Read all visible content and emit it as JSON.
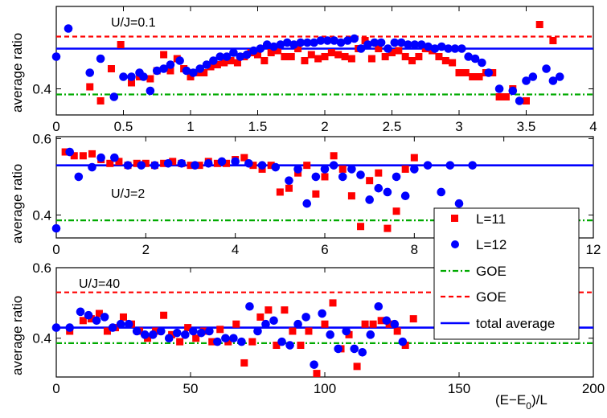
{
  "chart_data": [
    {
      "type": "scatter",
      "annotation": "U/J=0.1",
      "ylabel": "average ratio",
      "xlim": [
        0,
        4
      ],
      "ylim": [
        0.335,
        0.605
      ],
      "xticks": [
        "0",
        "0.5",
        "1",
        "1.5",
        "2",
        "2.5",
        "3",
        "3.5",
        "4"
      ],
      "xtick_values": [
        0,
        0.5,
        1,
        1.5,
        2,
        2.5,
        3,
        3.5,
        4
      ],
      "yticks": [
        "0.4"
      ],
      "ytick_values": [
        0.4
      ],
      "lines": {
        "goe_poisson": 0.386,
        "goe": 0.53,
        "total_average": 0.5
      },
      "series": [
        {
          "name": "L=11",
          "x": [
            0.25,
            0.33,
            0.41,
            0.48,
            0.56,
            0.62,
            0.7,
            0.75,
            0.8,
            0.85,
            0.9,
            0.95,
            1.0,
            1.05,
            1.1,
            1.15,
            1.2,
            1.25,
            1.3,
            1.35,
            1.4,
            1.45,
            1.5,
            1.55,
            1.6,
            1.65,
            1.7,
            1.75,
            1.8,
            1.85,
            1.9,
            1.95,
            2.0,
            2.05,
            2.1,
            2.15,
            2.2,
            2.25,
            2.3,
            2.35,
            2.4,
            2.45,
            2.5,
            2.55,
            2.6,
            2.65,
            2.7,
            2.75,
            2.8,
            2.85,
            2.9,
            2.95,
            3.0,
            3.05,
            3.1,
            3.15,
            3.2,
            3.25,
            3.3,
            3.35,
            3.4,
            3.5,
            3.6,
            3.7
          ],
          "y": [
            0.405,
            0.37,
            0.45,
            0.51,
            0.415,
            0.43,
            0.425,
            0.445,
            0.485,
            0.445,
            0.475,
            0.45,
            0.43,
            0.44,
            0.44,
            0.455,
            0.46,
            0.465,
            0.47,
            0.465,
            0.48,
            0.49,
            0.485,
            0.47,
            0.49,
            0.495,
            0.48,
            0.48,
            0.5,
            0.47,
            0.485,
            0.475,
            0.48,
            0.49,
            0.485,
            0.48,
            0.475,
            0.5,
            0.52,
            0.475,
            0.5,
            0.48,
            0.49,
            0.495,
            0.48,
            0.47,
            0.48,
            0.5,
            0.495,
            0.48,
            0.47,
            0.465,
            0.44,
            0.44,
            0.43,
            0.43,
            0.44,
            0.44,
            0.38,
            0.38,
            0.4,
            0.37,
            0.56,
            0.52
          ]
        },
        {
          "name": "L=12",
          "x": [
            0,
            0.09,
            0.25,
            0.33,
            0.43,
            0.5,
            0.56,
            0.62,
            0.65,
            0.7,
            0.75,
            0.8,
            0.85,
            0.92,
            0.97,
            1.02,
            1.07,
            1.12,
            1.17,
            1.22,
            1.27,
            1.32,
            1.37,
            1.42,
            1.47,
            1.52,
            1.57,
            1.62,
            1.67,
            1.72,
            1.77,
            1.82,
            1.87,
            1.92,
            1.97,
            2.02,
            2.07,
            2.12,
            2.17,
            2.22,
            2.27,
            2.32,
            2.37,
            2.42,
            2.47,
            2.52,
            2.57,
            2.62,
            2.67,
            2.72,
            2.77,
            2.82,
            2.87,
            2.92,
            2.97,
            3.02,
            3.07,
            3.12,
            3.17,
            3.22,
            3.3,
            3.4,
            3.45,
            3.5,
            3.55,
            3.65,
            3.7,
            3.75
          ],
          "y": [
            0.48,
            0.55,
            0.44,
            0.475,
            0.38,
            0.43,
            0.43,
            0.44,
            0.43,
            0.395,
            0.445,
            0.45,
            0.46,
            0.47,
            0.445,
            0.44,
            0.45,
            0.46,
            0.47,
            0.48,
            0.48,
            0.49,
            0.48,
            0.485,
            0.495,
            0.5,
            0.51,
            0.505,
            0.51,
            0.515,
            0.51,
            0.515,
            0.515,
            0.515,
            0.52,
            0.52,
            0.52,
            0.515,
            0.52,
            0.525,
            0.5,
            0.51,
            0.515,
            0.515,
            0.5,
            0.515,
            0.515,
            0.51,
            0.51,
            0.51,
            0.505,
            0.5,
            0.505,
            0.5,
            0.5,
            0.5,
            0.48,
            0.475,
            0.465,
            0.44,
            0.4,
            0.395,
            0.37,
            0.42,
            0.43,
            0.45,
            0.42,
            0.43
          ]
        }
      ]
    },
    {
      "type": "scatter",
      "annotation": "U/J=2",
      "ylabel": "average ratio",
      "xlim": [
        0,
        12
      ],
      "ylim": [
        0.34,
        0.605
      ],
      "xticks": [
        "0",
        "2",
        "4",
        "6",
        "8",
        "10",
        "12"
      ],
      "xtick_values": [
        0,
        2,
        4,
        6,
        8,
        10,
        12
      ],
      "yticks": [
        "0.4",
        "0.6"
      ],
      "ytick_values": [
        0.4,
        0.6
      ],
      "lines": {
        "goe_poisson": 0.386,
        "total_average": 0.53
      },
      "series": [
        {
          "name": "L=11",
          "x": [
            0.2,
            0.4,
            0.6,
            0.8,
            1.0,
            1.2,
            1.4,
            1.6,
            1.8,
            2.0,
            2.2,
            2.4,
            2.6,
            2.8,
            3.0,
            3.2,
            3.4,
            3.6,
            3.8,
            4.0,
            4.2,
            4.4,
            4.6,
            4.8,
            5.0,
            5.2,
            5.4,
            5.6,
            5.8,
            6.0,
            6.2,
            6.4,
            6.6,
            6.8,
            7.0,
            7.2,
            7.4,
            7.6,
            7.8,
            8.0
          ],
          "y": [
            0.565,
            0.555,
            0.555,
            0.56,
            0.545,
            0.535,
            0.54,
            0.53,
            0.535,
            0.535,
            0.53,
            0.535,
            0.54,
            0.535,
            0.53,
            0.53,
            0.54,
            0.535,
            0.535,
            0.545,
            0.55,
            0.53,
            0.52,
            0.53,
            0.46,
            0.47,
            0.51,
            0.53,
            0.455,
            0.5,
            0.555,
            0.52,
            0.45,
            0.37,
            0.49,
            0.51,
            0.365,
            0.41,
            0.52,
            0.55
          ]
        },
        {
          "name": "L=12",
          "x": [
            0,
            0.3,
            0.5,
            0.8,
            1.0,
            1.3,
            1.6,
            1.9,
            2.2,
            2.5,
            2.8,
            3.1,
            3.4,
            3.7,
            4.0,
            4.3,
            4.6,
            4.9,
            5.2,
            5.4,
            5.6,
            5.8,
            6.0,
            6.2,
            6.4,
            6.6,
            6.8,
            7.0,
            7.2,
            7.4,
            7.6,
            7.8,
            8.0,
            8.3,
            8.6,
            8.8,
            9.0,
            9.3
          ],
          "y": [
            0.365,
            0.565,
            0.5,
            0.525,
            0.55,
            0.55,
            0.53,
            0.53,
            0.53,
            0.535,
            0.535,
            0.53,
            0.535,
            0.54,
            0.54,
            0.535,
            0.53,
            0.525,
            0.49,
            0.52,
            0.43,
            0.5,
            0.52,
            0.53,
            0.5,
            0.52,
            0.505,
            0.44,
            0.47,
            0.46,
            0.5,
            0.45,
            0.52,
            0.53,
            0.46,
            0.53,
            0.43,
            0.53
          ]
        }
      ]
    },
    {
      "type": "scatter",
      "annotation": "U/J=40",
      "ylabel": "average ratio",
      "xlabel": "(E−E",
      "xlabel_sub": "0",
      "xlabel_end": ")/L",
      "xlim": [
        0,
        200
      ],
      "ylim": [
        0.29,
        0.6
      ],
      "xticks": [
        "0",
        "50",
        "100",
        "150",
        "200"
      ],
      "xtick_values": [
        0,
        50,
        100,
        150,
        200
      ],
      "yticks": [
        "0.4",
        "0.6"
      ],
      "ytick_values": [
        0.4,
        0.6
      ],
      "lines": {
        "goe_poisson": 0.386,
        "goe": 0.53,
        "total_average": 0.43
      },
      "series": [
        {
          "name": "L=11",
          "x": [
            5,
            10,
            13,
            16,
            19,
            22,
            25,
            28,
            31,
            34,
            37,
            40,
            43,
            46,
            49,
            52,
            55,
            58,
            61,
            64,
            67,
            70,
            73,
            76,
            79,
            82,
            85,
            88,
            91,
            94,
            97,
            100,
            103,
            106,
            109,
            112,
            115,
            118,
            121,
            124,
            127,
            130,
            133
          ],
          "y": [
            0.42,
            0.45,
            0.455,
            0.47,
            0.42,
            0.43,
            0.46,
            0.44,
            0.42,
            0.4,
            0.42,
            0.465,
            0.41,
            0.39,
            0.43,
            0.4,
            0.42,
            0.39,
            0.425,
            0.39,
            0.44,
            0.33,
            0.39,
            0.46,
            0.48,
            0.38,
            0.48,
            0.42,
            0.38,
            0.42,
            0.3,
            0.44,
            0.5,
            0.37,
            0.41,
            0.32,
            0.44,
            0.44,
            0.45,
            0.44,
            0.42,
            0.38,
            0.455
          ]
        },
        {
          "name": "L=12",
          "x": [
            0,
            5,
            9,
            12,
            15,
            18,
            21,
            24,
            27,
            30,
            33,
            36,
            39,
            42,
            45,
            48,
            51,
            54,
            57,
            60,
            63,
            66,
            69,
            72,
            75,
            78,
            81,
            84,
            87,
            90,
            93,
            96,
            99,
            102,
            105,
            108,
            111,
            114,
            117,
            120,
            123,
            126,
            129
          ],
          "y": [
            0.43,
            0.43,
            0.475,
            0.465,
            0.45,
            0.46,
            0.43,
            0.44,
            0.44,
            0.42,
            0.41,
            0.41,
            0.42,
            0.4,
            0.415,
            0.41,
            0.42,
            0.415,
            0.42,
            0.39,
            0.4,
            0.4,
            0.39,
            0.49,
            0.42,
            0.44,
            0.45,
            0.39,
            0.38,
            0.44,
            0.46,
            0.325,
            0.47,
            0.41,
            0.37,
            0.42,
            0.37,
            0.36,
            0.41,
            0.49,
            0.45,
            0.44,
            0.39
          ]
        }
      ]
    }
  ],
  "legend": {
    "items": [
      {
        "label": "L=11",
        "marker": "square",
        "color": "#ff0000"
      },
      {
        "label": "L=12",
        "marker": "circle",
        "color": "#0000ff"
      },
      {
        "label": "GOE",
        "marker": "dashdot",
        "color": "#00aa00"
      },
      {
        "label": "GOE",
        "marker": "dash",
        "color": "#ff0000"
      },
      {
        "label": "total average",
        "marker": "solid",
        "color": "#0000ff"
      }
    ]
  },
  "colors": {
    "red": "#ff0000",
    "blue": "#0000ff",
    "green": "#00aa00"
  }
}
